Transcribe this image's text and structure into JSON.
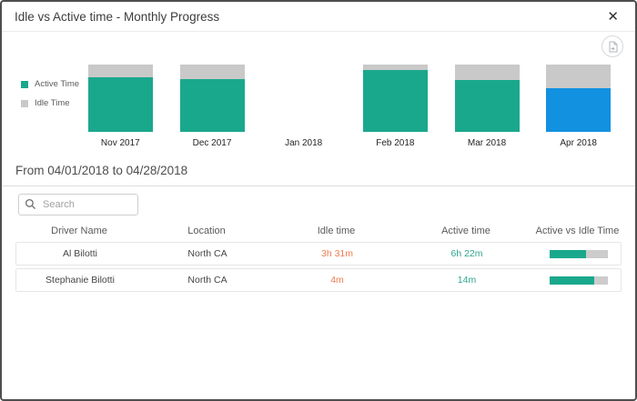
{
  "dialog": {
    "title": "Idle vs Active time - Monthly Progress"
  },
  "icons": {
    "close_glyph": "✕",
    "export": "export-report-icon",
    "search": "search-icon"
  },
  "colors": {
    "active": "#1aa88c",
    "idle": "#c9c9c9",
    "selected_active": "#1191e0",
    "idle_text": "#ee7d52",
    "active_text": "#2ba58e"
  },
  "chart_data": {
    "type": "bar",
    "stacked": true,
    "title": "Idle vs Active time - Monthly Progress",
    "categories": [
      "Nov 2017",
      "Dec 2017",
      "Jan 2018",
      "Feb 2018",
      "Mar 2018",
      "Apr 2018"
    ],
    "series": [
      {
        "name": "Active Time",
        "values": [
          81,
          78,
          0,
          92,
          77,
          65
        ]
      },
      {
        "name": "Idle Time",
        "values": [
          19,
          22,
          0,
          8,
          23,
          35
        ]
      }
    ],
    "units": "percent_of_total_bar_height",
    "selected_category": "Apr 2018",
    "legend_position": "left",
    "legend": [
      "Active Time",
      "Idle Time"
    ],
    "axes": "none"
  },
  "period": {
    "label": "From 04/01/2018 to 04/28/2018"
  },
  "search": {
    "placeholder": "Search"
  },
  "table": {
    "columns": [
      "Driver Name",
      "Location",
      "Idle time",
      "Active time",
      "Active vs Idle Time"
    ],
    "rows": [
      {
        "driver": "Al Bilotti",
        "location": "North CA",
        "idle": "3h 31m",
        "active": "6h 22m",
        "active_pct": 64
      },
      {
        "driver": "Stephanie Bilotti",
        "location": "North CA",
        "idle": "4m",
        "active": "14m",
        "active_pct": 77
      }
    ]
  }
}
